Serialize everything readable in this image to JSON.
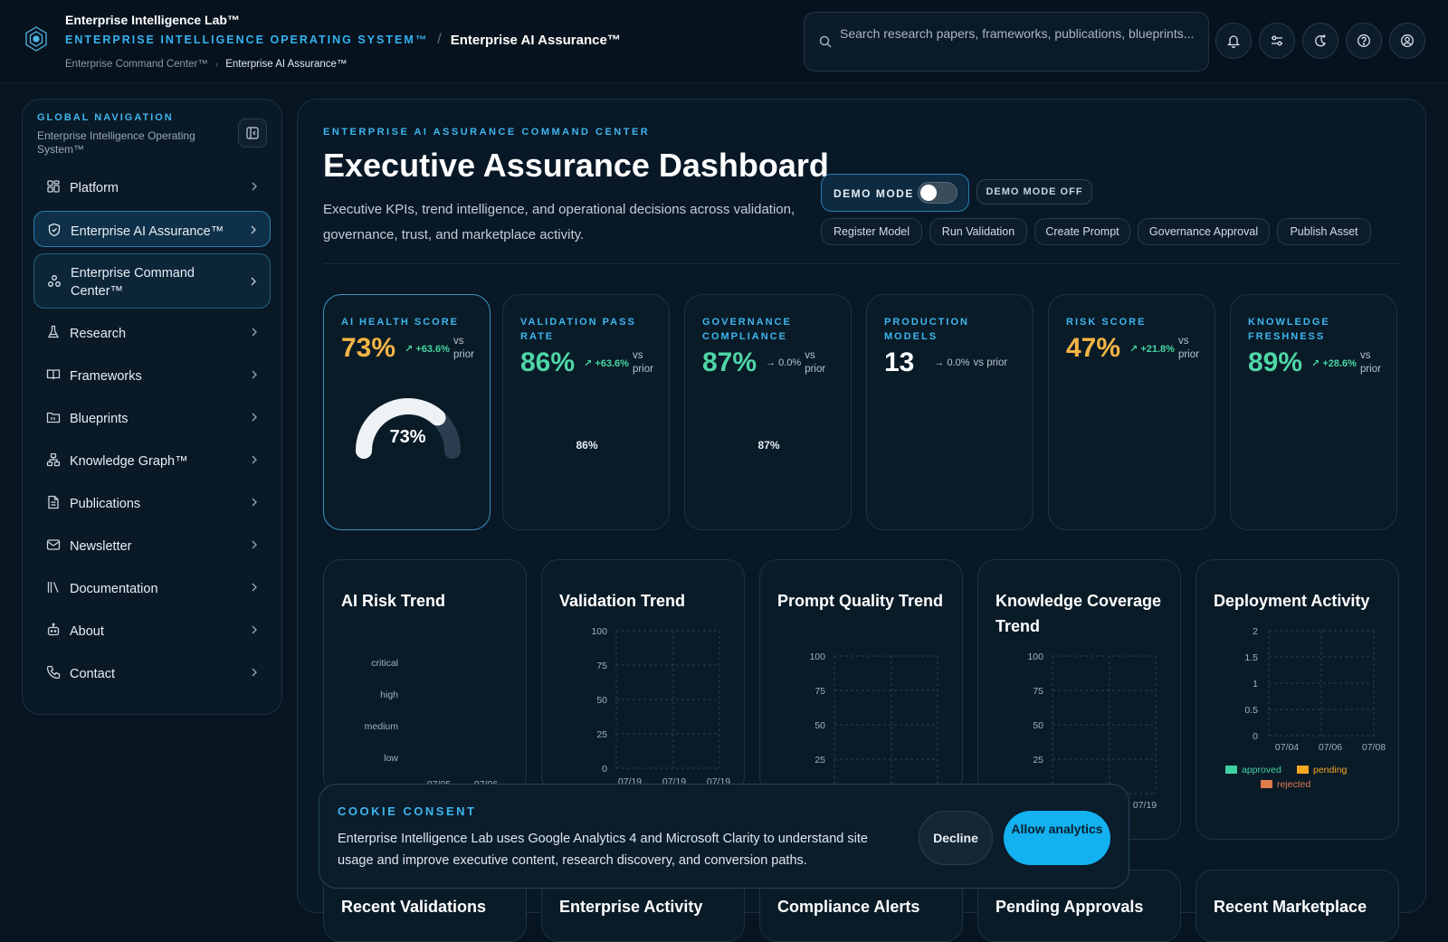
{
  "header": {
    "brand": "Enterprise Intelligence Lab™",
    "os_name": "ENTERPRISE INTELLIGENCE OPERATING SYSTEM™",
    "separator": "/",
    "current_page": "Enterprise AI Assurance™",
    "breadcrumb": [
      "Enterprise Command Center™",
      "Enterprise AI Assurance™"
    ],
    "search_placeholder": "Search research papers, frameworks, publications, blueprints...",
    "toolbar_icons": [
      "bell-icon",
      "sliders-icon",
      "theme-icon",
      "help-icon",
      "account-icon"
    ]
  },
  "sidebar": {
    "title": "GLOBAL NAVIGATION",
    "subtitle": "Enterprise Intelligence Operating System™",
    "items": [
      {
        "label": "Platform",
        "icon": "grid-icon"
      },
      {
        "label": "Enterprise AI Assurance™",
        "icon": "shield-icon",
        "state": "active"
      },
      {
        "label": "Enterprise Command Center™",
        "icon": "network-icon",
        "state": "highlighted"
      },
      {
        "label": "Research",
        "icon": "flask-icon"
      },
      {
        "label": "Frameworks",
        "icon": "book-icon"
      },
      {
        "label": "Blueprints",
        "icon": "folder-icon"
      },
      {
        "label": "Knowledge Graph™",
        "icon": "graph-icon"
      },
      {
        "label": "Publications",
        "icon": "document-icon"
      },
      {
        "label": "Newsletter",
        "icon": "mail-icon"
      },
      {
        "label": "Documentation",
        "icon": "library-icon"
      },
      {
        "label": "About",
        "icon": "bot-icon"
      },
      {
        "label": "Contact",
        "icon": "phone-icon"
      }
    ]
  },
  "dashboard": {
    "kicker": "ENTERPRISE AI ASSURANCE COMMAND CENTER",
    "title": "Executive Assurance Dashboard",
    "description": "Executive KPIs, trend intelligence, and operational decisions across validation, governance, trust, and marketplace activity.",
    "demo_mode_label": "DEMO MODE",
    "demo_mode_on": false,
    "demo_mode_status": "DEMO MODE OFF",
    "quick_actions": [
      "Register Model",
      "Run Validation",
      "Create Prompt",
      "Governance Approval",
      "Publish Asset"
    ]
  },
  "kpis": [
    {
      "label": "AI HEALTH SCORE",
      "value": "73%",
      "delta": "+63.6%",
      "vs": "vs prior",
      "color": "#f5b544",
      "gauge_value": "73%",
      "gauge_fraction": 0.73
    },
    {
      "label": "VALIDATION PASS RATE",
      "value": "86%",
      "delta": "+63.6%",
      "vs": "vs prior",
      "color": "#4fd6a6",
      "inner": "86%"
    },
    {
      "label": "GOVERNANCE COMPLIANCE",
      "value": "87%",
      "delta": "0.0%",
      "vs": "vs prior",
      "color": "#4fd6a6",
      "inner": "87%"
    },
    {
      "label": "PRODUCTION MODELS",
      "value": "13",
      "delta": "0.0%",
      "vs": "vs prior",
      "color": "#ffffff"
    },
    {
      "label": "RISK SCORE",
      "value": "47%",
      "delta": "+21.8%",
      "vs": "vs prior",
      "color": "#f5b544"
    },
    {
      "label": "KNOWLEDGE FRESHNESS",
      "value": "89%",
      "delta": "+28.6%",
      "vs": "vs prior",
      "color": "#4fd6a6"
    }
  ],
  "charts": {
    "ai_risk_trend": {
      "title": "AI Risk Trend",
      "y_categories": [
        "critical",
        "high",
        "medium",
        "low"
      ],
      "x_ticks": [
        "07/05",
        "07/06"
      ]
    },
    "validation_trend": {
      "title": "Validation Trend",
      "y_ticks": [
        "100",
        "75",
        "50",
        "25",
        "0"
      ],
      "x_ticks": [
        "07/19",
        "07/19",
        "07/19"
      ]
    },
    "prompt_quality_trend": {
      "title": "Prompt Quality Trend",
      "y_ticks": [
        "100",
        "75",
        "50",
        "25"
      ]
    },
    "knowledge_coverage_trend": {
      "title": "Knowledge Coverage Trend",
      "y_ticks": [
        "100",
        "75",
        "50",
        "25"
      ],
      "x_ticks": [
        "07/19"
      ]
    },
    "deployment_activity": {
      "title": "Deployment Activity",
      "y_ticks": [
        "2",
        "1.5",
        "1",
        "0.5",
        "0"
      ],
      "x_ticks": [
        "07/04",
        "07/06",
        "07/08"
      ],
      "legend": [
        {
          "label": "approved",
          "color": "#3fd0a0"
        },
        {
          "label": "pending",
          "color": "#f5a623"
        },
        {
          "label": "rejected",
          "color": "#e07b4c"
        }
      ]
    }
  },
  "bottom_cards": [
    "Recent Validations",
    "Enterprise Activity",
    "Compliance Alerts",
    "Pending Approvals",
    "Recent Marketplace"
  ],
  "cookie": {
    "title": "COOKIE CONSENT",
    "text": "Enterprise Intelligence Lab uses Google Analytics 4 and Microsoft Clarity to understand site usage and improve executive content, research discovery, and conversion paths.",
    "decline": "Decline",
    "allow": "Allow analytics"
  }
}
